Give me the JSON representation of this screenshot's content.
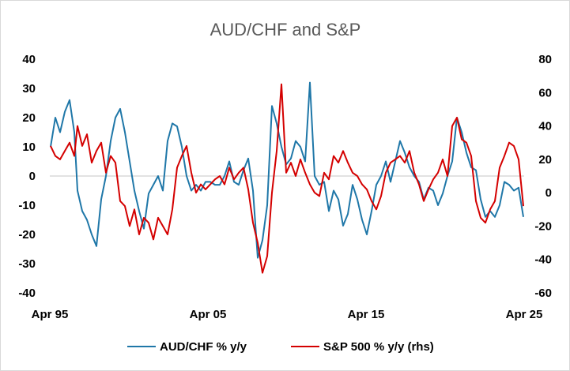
{
  "chart_data": {
    "type": "line",
    "title": "AUD/CHF and S&P",
    "x_ticks": [
      "Apr 95",
      "Apr 05",
      "Apr 15",
      "Apr 25"
    ],
    "y_left": {
      "ylim": [
        -40,
        40
      ],
      "ticks": [
        "40",
        "30",
        "20",
        "10",
        "0",
        "-10",
        "-20",
        "-30",
        "-40"
      ]
    },
    "y_right": {
      "ylim": [
        -60,
        80
      ],
      "ticks": [
        "80",
        "60",
        "40",
        "20",
        "0",
        "-20",
        "-40",
        "-60"
      ]
    },
    "grid": false,
    "legend_position": "bottom",
    "series": [
      {
        "name": "AUD/CHF % y/y",
        "axis": "left",
        "color": "#1f77a8",
        "x": [
          1995.3,
          1995.6,
          1995.9,
          1996.2,
          1996.5,
          1996.8,
          1997.0,
          1997.3,
          1997.6,
          1997.9,
          1998.2,
          1998.5,
          1998.8,
          1999.1,
          1999.4,
          1999.7,
          2000.0,
          2000.3,
          2000.6,
          2000.9,
          2001.2,
          2001.5,
          2001.8,
          2002.1,
          2002.4,
          2002.7,
          2003.0,
          2003.3,
          2003.6,
          2003.9,
          2004.2,
          2004.5,
          2004.8,
          2005.1,
          2005.4,
          2005.7,
          2006.0,
          2006.3,
          2006.6,
          2006.9,
          2007.2,
          2007.5,
          2007.8,
          2008.1,
          2008.4,
          2008.7,
          2009.0,
          2009.3,
          2009.6,
          2009.9,
          2010.2,
          2010.5,
          2010.8,
          2011.1,
          2011.4,
          2011.7,
          2012.0,
          2012.3,
          2012.6,
          2012.9,
          2013.2,
          2013.5,
          2013.8,
          2014.1,
          2014.4,
          2014.7,
          2015.0,
          2015.3,
          2015.6,
          2015.9,
          2016.2,
          2016.5,
          2016.8,
          2017.1,
          2017.4,
          2017.7,
          2018.0,
          2018.3,
          2018.6,
          2018.9,
          2019.2,
          2019.5,
          2019.8,
          2020.1,
          2020.4,
          2020.7,
          2021.0,
          2021.3,
          2021.6,
          2021.9,
          2022.2,
          2022.5,
          2022.8,
          2023.1,
          2023.4,
          2023.7,
          2024.0,
          2024.3,
          2024.6,
          2024.9,
          2025.2
        ],
        "y": [
          10,
          20,
          15,
          22,
          26,
          15,
          -5,
          -12,
          -15,
          -20,
          -24,
          -8,
          0,
          12,
          20,
          23,
          15,
          5,
          -5,
          -12,
          -18,
          -6,
          -3,
          0,
          -5,
          12,
          18,
          17,
          10,
          0,
          -5,
          -3,
          -5,
          -2,
          -2,
          -3,
          -3,
          0,
          5,
          -2,
          -3,
          2,
          6,
          -5,
          -28,
          -22,
          -10,
          24,
          18,
          10,
          4,
          6,
          12,
          10,
          5,
          32,
          0,
          -3,
          -2,
          -12,
          -5,
          -8,
          -17,
          -13,
          -3,
          -8,
          -15,
          -20,
          -12,
          -3,
          0,
          5,
          -2,
          5,
          12,
          8,
          3,
          0,
          -2,
          -8,
          -4,
          -5,
          -10,
          -6,
          0,
          5,
          20,
          15,
          8,
          3,
          2,
          -8,
          -14,
          -12,
          -14,
          -10,
          -2,
          -3,
          -5,
          -4,
          -14
        ],
        "labels_text": ""
      },
      {
        "name": "S&P 500 % y/y (rhs)",
        "axis": "right",
        "color": "#d40000",
        "x": [
          1995.3,
          1995.6,
          1995.9,
          1996.2,
          1996.5,
          1996.8,
          1997.0,
          1997.3,
          1997.6,
          1997.9,
          1998.2,
          1998.5,
          1998.8,
          1999.1,
          1999.4,
          1999.7,
          2000.0,
          2000.3,
          2000.6,
          2000.9,
          2001.2,
          2001.5,
          2001.8,
          2002.1,
          2002.4,
          2002.7,
          2003.0,
          2003.3,
          2003.6,
          2003.9,
          2004.2,
          2004.5,
          2004.8,
          2005.1,
          2005.4,
          2005.7,
          2006.0,
          2006.3,
          2006.6,
          2006.9,
          2007.2,
          2007.5,
          2007.8,
          2008.1,
          2008.4,
          2008.7,
          2009.0,
          2009.3,
          2009.6,
          2009.9,
          2010.2,
          2010.5,
          2010.8,
          2011.1,
          2011.4,
          2011.7,
          2012.0,
          2012.3,
          2012.6,
          2012.9,
          2013.2,
          2013.5,
          2013.8,
          2014.1,
          2014.4,
          2014.7,
          2015.0,
          2015.3,
          2015.6,
          2015.9,
          2016.2,
          2016.5,
          2016.8,
          2017.1,
          2017.4,
          2017.7,
          2018.0,
          2018.3,
          2018.6,
          2018.9,
          2019.2,
          2019.5,
          2019.8,
          2020.1,
          2020.4,
          2020.7,
          2021.0,
          2021.3,
          2021.6,
          2021.9,
          2022.2,
          2022.5,
          2022.8,
          2023.1,
          2023.4,
          2023.7,
          2024.0,
          2024.3,
          2024.6,
          2024.9,
          2025.2
        ],
        "y": [
          28,
          22,
          20,
          25,
          30,
          22,
          40,
          28,
          35,
          18,
          25,
          30,
          12,
          22,
          18,
          -5,
          -8,
          -20,
          -10,
          -25,
          -15,
          -18,
          -28,
          -15,
          -20,
          -25,
          -10,
          15,
          22,
          28,
          12,
          0,
          5,
          2,
          5,
          8,
          10,
          5,
          15,
          8,
          12,
          15,
          2,
          -18,
          -30,
          -48,
          -38,
          0,
          25,
          65,
          12,
          18,
          10,
          20,
          12,
          5,
          0,
          -2,
          12,
          8,
          22,
          18,
          25,
          18,
          12,
          10,
          5,
          2,
          -5,
          -10,
          -2,
          12,
          18,
          20,
          22,
          18,
          25,
          12,
          5,
          -5,
          2,
          8,
          12,
          20,
          10,
          40,
          45,
          32,
          30,
          22,
          -5,
          -15,
          -18,
          -10,
          -5,
          15,
          22,
          30,
          28,
          20,
          -8
        ],
        "labels_text": ""
      }
    ]
  }
}
